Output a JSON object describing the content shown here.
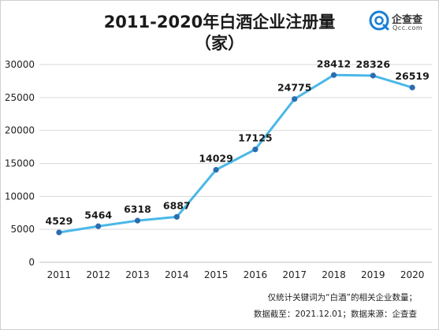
{
  "header": {
    "title_line1": "2011-2020年白酒企业注册量",
    "title_line2": "（家）"
  },
  "logo": {
    "name": "企查查",
    "domain": "Qcc.com",
    "accent": "#1a7fd4"
  },
  "chart_data": {
    "type": "line",
    "categories": [
      "2011",
      "2012",
      "2013",
      "2014",
      "2015",
      "2016",
      "2017",
      "2018",
      "2019",
      "2020"
    ],
    "series": [
      {
        "values": [
          4529,
          5464,
          6318,
          6887,
          14029,
          17125,
          24775,
          28412,
          28326,
          26519
        ]
      }
    ],
    "data_labels": [
      "4529",
      "5464",
      "6318",
      "6887",
      "14029",
      "17125",
      "24775",
      "28412",
      "28326",
      "26519"
    ],
    "y_ticks": [
      "0",
      "5000",
      "10000",
      "15000",
      "20000",
      "25000",
      "30000"
    ],
    "ylim": [
      0,
      30000
    ],
    "grid": true,
    "legend": "none",
    "line_color": "#4ab8e8",
    "marker_color": "#2b6cb0"
  },
  "notes": {
    "line1": "仅统计关键词为“白酒”的相关企业数量；",
    "line2": "数据截至：2021.12.01；数据来源：企查查"
  }
}
